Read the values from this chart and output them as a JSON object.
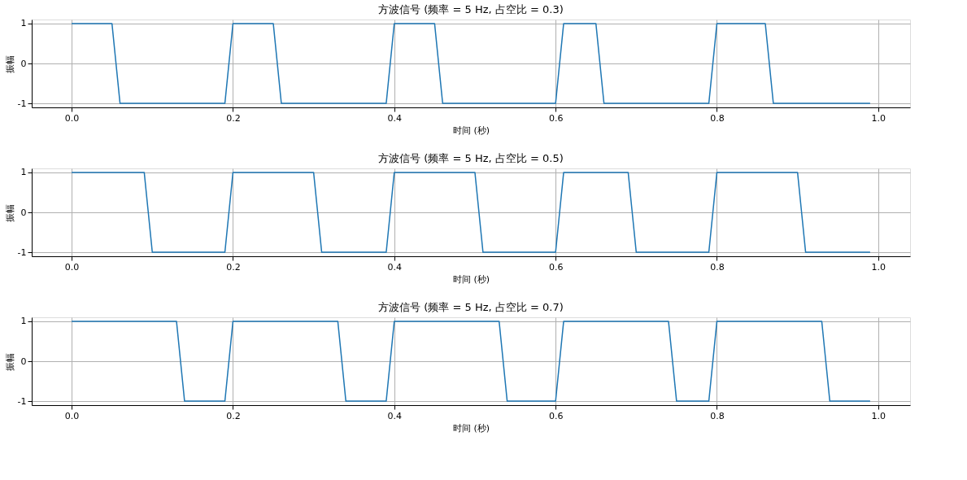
{
  "chart_data": [
    {
      "type": "line",
      "title": "方波信号 (频率 = 5 Hz, 占空比 = 0.3)",
      "xlabel": "时间 (秒)",
      "ylabel": "振幅",
      "x": [
        0,
        0.05,
        0.06,
        0.19,
        0.2,
        0.25,
        0.26,
        0.39,
        0.4,
        0.45,
        0.46,
        0.6,
        0.61,
        0.65,
        0.66,
        0.79,
        0.8,
        0.86,
        0.87,
        0.99
      ],
      "series": [
        {
          "color": "#1f77b4",
          "values": [
            1,
            1,
            -1,
            -1,
            1,
            1,
            -1,
            -1,
            1,
            1,
            -1,
            -1,
            1,
            1,
            -1,
            -1,
            1,
            1,
            -1,
            -1
          ]
        }
      ],
      "xlim": [
        -0.0495,
        1.0395
      ],
      "ylim": [
        -1.1,
        1.1
      ],
      "xticks": [
        {
          "value": 0,
          "label": "0.0"
        },
        {
          "value": 0.2,
          "label": "0.2"
        },
        {
          "value": 0.4,
          "label": "0.4"
        },
        {
          "value": 0.6,
          "label": "0.6"
        },
        {
          "value": 0.8,
          "label": "0.8"
        },
        {
          "value": 1,
          "label": "1.0"
        }
      ],
      "yticks": [
        -1,
        0,
        1
      ],
      "grid": true,
      "marker": "none",
      "line_style": "solid"
    },
    {
      "type": "line",
      "title": "方波信号 (频率 = 5 Hz, 占空比 = 0.5)",
      "xlabel": "时间 (秒)",
      "ylabel": "振幅",
      "x": [
        0,
        0.09,
        0.1,
        0.19,
        0.2,
        0.3,
        0.31,
        0.39,
        0.4,
        0.5,
        0.51,
        0.6,
        0.61,
        0.69,
        0.7,
        0.79,
        0.8,
        0.9,
        0.91,
        0.99
      ],
      "series": [
        {
          "color": "#1f77b4",
          "values": [
            1,
            1,
            -1,
            -1,
            1,
            1,
            -1,
            -1,
            1,
            1,
            -1,
            -1,
            1,
            1,
            -1,
            -1,
            1,
            1,
            -1,
            -1
          ]
        }
      ],
      "xlim": [
        -0.0495,
        1.0395
      ],
      "ylim": [
        -1.1,
        1.1
      ],
      "xticks": [
        {
          "value": 0,
          "label": "0.0"
        },
        {
          "value": 0.2,
          "label": "0.2"
        },
        {
          "value": 0.4,
          "label": "0.4"
        },
        {
          "value": 0.6,
          "label": "0.6"
        },
        {
          "value": 0.8,
          "label": "0.8"
        },
        {
          "value": 1,
          "label": "1.0"
        }
      ],
      "yticks": [
        -1,
        0,
        1
      ],
      "grid": true,
      "marker": "none",
      "line_style": "solid"
    },
    {
      "type": "line",
      "title": "方波信号 (频率 = 5 Hz, 占空比 = 0.7)",
      "xlabel": "时间 (秒)",
      "ylabel": "振幅",
      "x": [
        0,
        0.13,
        0.14,
        0.19,
        0.2,
        0.33,
        0.34,
        0.39,
        0.4,
        0.53,
        0.54,
        0.6,
        0.61,
        0.74,
        0.75,
        0.79,
        0.8,
        0.93,
        0.94,
        0.99
      ],
      "series": [
        {
          "color": "#1f77b4",
          "values": [
            1,
            1,
            -1,
            -1,
            1,
            1,
            -1,
            -1,
            1,
            1,
            -1,
            -1,
            1,
            1,
            -1,
            -1,
            1,
            1,
            -1,
            -1
          ]
        }
      ],
      "xlim": [
        -0.0495,
        1.0395
      ],
      "ylim": [
        -1.1,
        1.1
      ],
      "xticks": [
        {
          "value": 0,
          "label": "0.0"
        },
        {
          "value": 0.2,
          "label": "0.2"
        },
        {
          "value": 0.4,
          "label": "0.4"
        },
        {
          "value": 0.6,
          "label": "0.6"
        },
        {
          "value": 0.8,
          "label": "0.8"
        },
        {
          "value": 1,
          "label": "1.0"
        }
      ],
      "yticks": [
        -1,
        0,
        1
      ],
      "grid": true,
      "marker": "none",
      "line_style": "solid"
    }
  ]
}
